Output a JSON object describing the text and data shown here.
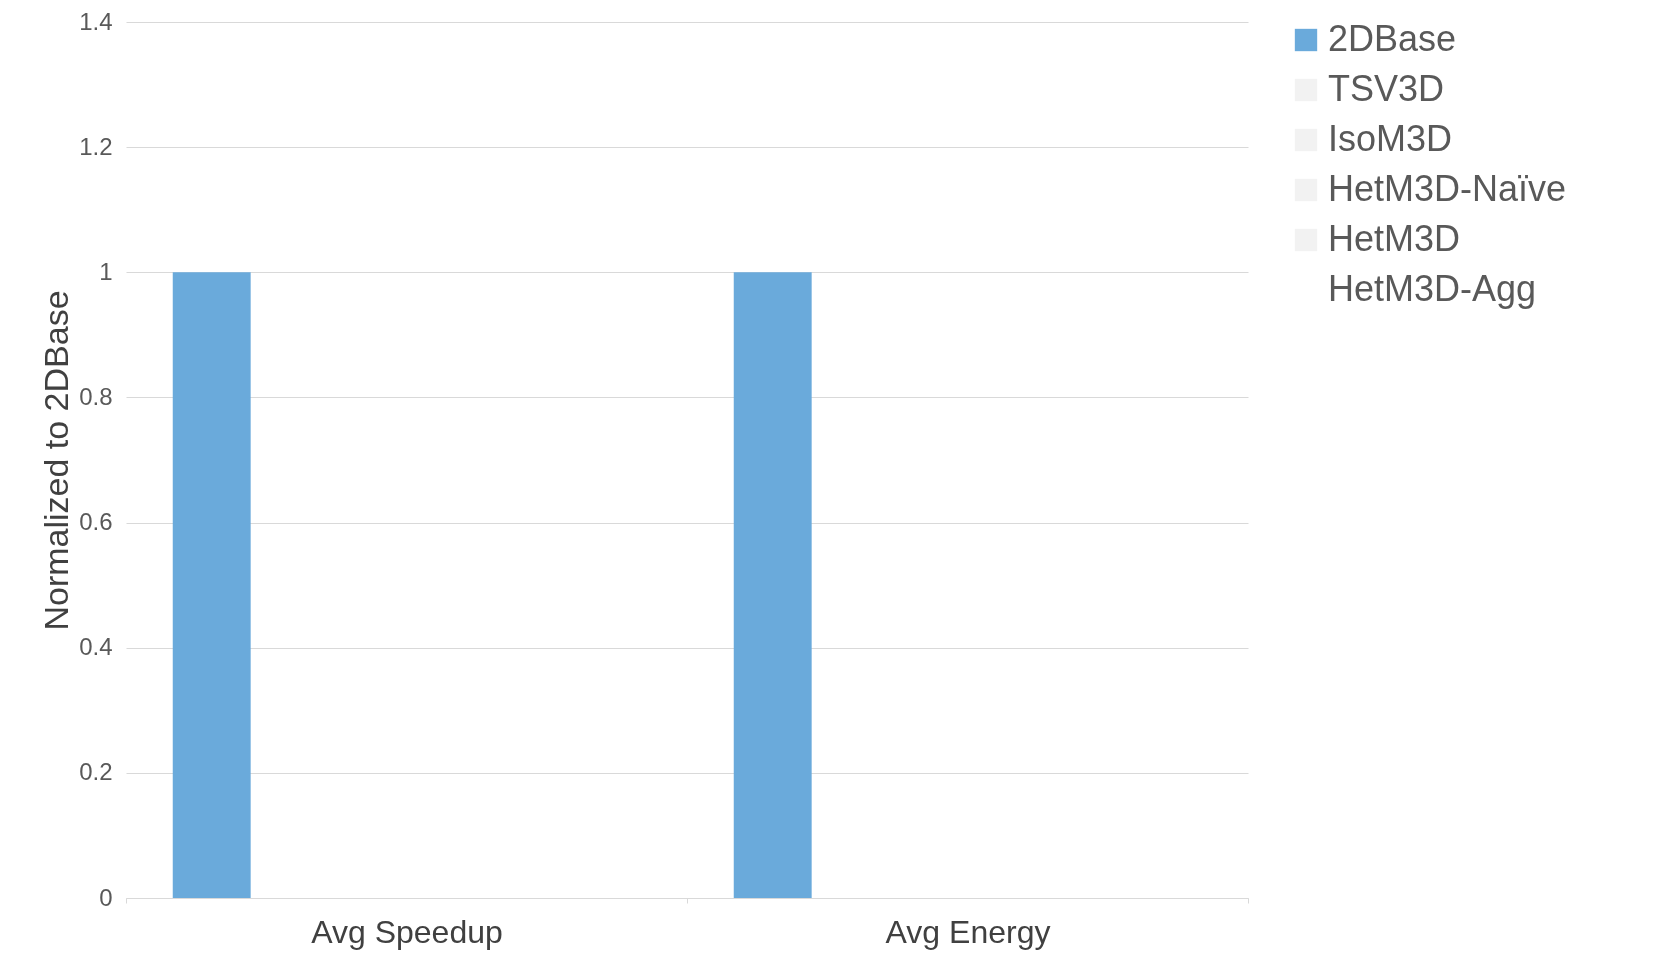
{
  "chart_data": {
    "type": "bar",
    "ylabel": "Normalized to 2DBase",
    "categories": [
      "Avg Speedup",
      "Avg Energy"
    ],
    "series": [
      {
        "name": "2DBase",
        "color": "#6aaadb",
        "values": [
          1,
          1
        ]
      },
      {
        "name": "TSV3D",
        "color": "#f2f2f2",
        "values": [
          null,
          null
        ]
      },
      {
        "name": "IsoM3D",
        "color": "#f2f2f2",
        "values": [
          null,
          null
        ]
      },
      {
        "name": "HetM3D-Naïve",
        "color": "#f2f2f2",
        "values": [
          null,
          null
        ]
      },
      {
        "name": "HetM3D",
        "color": "#f2f2f2",
        "values": [
          null,
          null
        ]
      },
      {
        "name": "HetM3D-Agg",
        "values": [
          null,
          null
        ]
      }
    ],
    "ylim": [
      0,
      1.4
    ],
    "yticks": [
      0,
      0.2,
      0.4,
      0.6,
      0.8,
      1,
      1.2,
      1.4
    ],
    "grid": "y",
    "legend": "right"
  }
}
